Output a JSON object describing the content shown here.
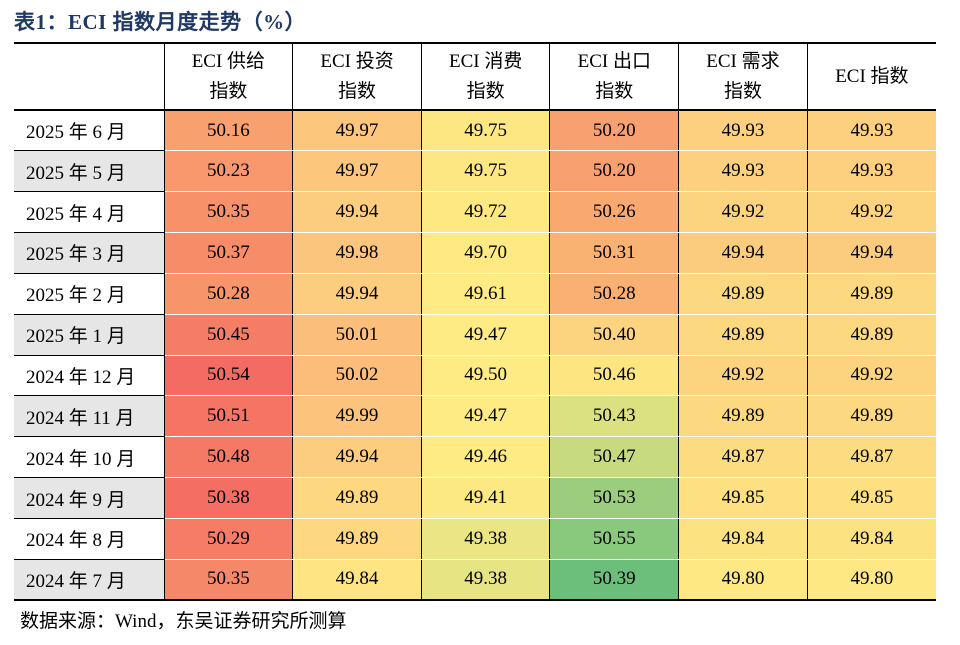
{
  "title": "表1：ECI 指数月度走势（%）",
  "columns": [
    {
      "line1": "ECI 供给",
      "line2": "指数"
    },
    {
      "line1": "ECI 投资",
      "line2": "指数"
    },
    {
      "line1": "ECI 消费",
      "line2": "指数"
    },
    {
      "line1": "ECI 出口",
      "line2": "指数"
    },
    {
      "line1": "ECI 需求",
      "line2": "指数"
    },
    {
      "line1": "ECI 指数",
      "line2": ""
    }
  ],
  "rows": [
    {
      "month": "2025 年 6 月",
      "values": [
        "50.16",
        "49.97",
        "49.75",
        "50.20",
        "49.93",
        "49.93"
      ],
      "colors": [
        "#f8a06e",
        "#fcc67d",
        "#fde782",
        "#f9a070",
        "#fcd07f",
        "#fcd07f"
      ]
    },
    {
      "month": "2025 年 5 月",
      "values": [
        "50.23",
        "49.97",
        "49.75",
        "50.20",
        "49.93",
        "49.93"
      ],
      "colors": [
        "#f8986c",
        "#fcc67d",
        "#fde782",
        "#f9a070",
        "#fcd07f",
        "#fcd07f"
      ]
    },
    {
      "month": "2025 年 4 月",
      "values": [
        "50.35",
        "49.94",
        "49.72",
        "50.26",
        "49.92",
        "49.92"
      ],
      "colors": [
        "#f79169",
        "#fccd7e",
        "#fee882",
        "#f9a870",
        "#fcd37f",
        "#fcd37f"
      ]
    },
    {
      "month": "2025 年 3 月",
      "values": [
        "50.37",
        "49.98",
        "49.70",
        "50.31",
        "49.94",
        "49.94"
      ],
      "colors": [
        "#f78c68",
        "#fcc57d",
        "#fee983",
        "#fab272",
        "#fccc7e",
        "#fccc7e"
      ]
    },
    {
      "month": "2025 年 2 月",
      "values": [
        "50.28",
        "49.94",
        "49.61",
        "50.28",
        "49.89",
        "49.89"
      ],
      "colors": [
        "#f8946a",
        "#fccd7e",
        "#ffeb84",
        "#fab072",
        "#fcd980",
        "#fcd980"
      ]
    },
    {
      "month": "2025 年 1 月",
      "values": [
        "50.45",
        "50.01",
        "49.47",
        "50.40",
        "49.89",
        "49.89"
      ],
      "colors": [
        "#f67d65",
        "#fcbf7b",
        "#ffeb84",
        "#fcd47f",
        "#fcd980",
        "#fcd980"
      ]
    },
    {
      "month": "2024 年 12 月",
      "values": [
        "50.54",
        "50.02",
        "49.50",
        "50.46",
        "49.92",
        "49.92"
      ],
      "colors": [
        "#f46b63",
        "#fcbd7b",
        "#ffeb84",
        "#fde682",
        "#fcd37f",
        "#fcd37f"
      ]
    },
    {
      "month": "2024 年 11 月",
      "values": [
        "50.51",
        "49.99",
        "49.47",
        "50.43",
        "49.89",
        "49.89"
      ],
      "colors": [
        "#f57464",
        "#fcc37c",
        "#ffeb84",
        "#dbe081",
        "#fcd980",
        "#fcd980"
      ]
    },
    {
      "month": "2024 年 10 月",
      "values": [
        "50.48",
        "49.94",
        "49.46",
        "50.47",
        "49.87",
        "49.87"
      ],
      "colors": [
        "#f57a65",
        "#fccd7e",
        "#ffeb84",
        "#c7da80",
        "#fddc81",
        "#fddc81"
      ]
    },
    {
      "month": "2024 年 9 月",
      "values": [
        "50.38",
        "49.89",
        "49.41",
        "50.53",
        "49.85",
        "49.85"
      ],
      "colors": [
        "#f46e63",
        "#fdd880",
        "#fde983",
        "#9ccd7e",
        "#fde081",
        "#fde081"
      ]
    },
    {
      "month": "2024 年 8 月",
      "values": [
        "50.29",
        "49.89",
        "49.38",
        "50.55",
        "49.84",
        "49.84"
      ],
      "colors": [
        "#f67c66",
        "#fdd880",
        "#ebe583",
        "#89c97e",
        "#fde282",
        "#fde282"
      ]
    },
    {
      "month": "2024 年 7 月",
      "values": [
        "50.35",
        "49.84",
        "49.38",
        "50.39",
        "49.80",
        "49.80"
      ],
      "colors": [
        "#f6886a",
        "#fee483",
        "#e7e483",
        "#6bbf7b",
        "#fee883",
        "#fee883"
      ]
    }
  ],
  "source": "数据来源：Wind，东吴证券研究所测算"
}
